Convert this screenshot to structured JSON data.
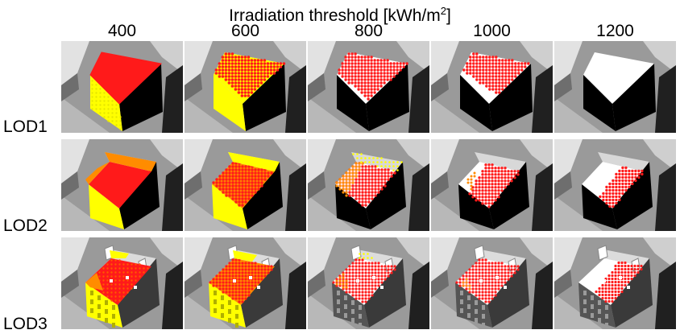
{
  "figure": {
    "title_prefix": "Irradiation threshold [kWh/m",
    "title_sup": "2",
    "title_suffix": "]",
    "columns": [
      "400",
      "600",
      "800",
      "1000",
      "1200"
    ],
    "rows": [
      "LOD1",
      "LOD2",
      "LOD3"
    ]
  },
  "colors": {
    "yellow": "#ffff00",
    "orange": "#ff8c00",
    "red": "#ff1a1a",
    "white": "#ffffff",
    "grey_ground": "#9a9a9a",
    "dark_wall": "#000000"
  }
}
